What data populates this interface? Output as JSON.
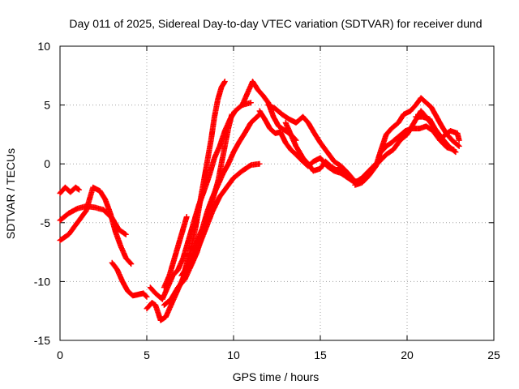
{
  "chart_data": {
    "type": "scatter",
    "title": "Day 011 of 2025, Sidereal Day-to-day VTEC variation (SDTVAR) for receiver dund",
    "xlabel": "GPS time / hours",
    "ylabel": "SDTVAR / TECUs",
    "xlim": [
      0,
      25
    ],
    "ylim": [
      -15,
      10
    ],
    "xticks": [
      0,
      5,
      10,
      15,
      20,
      25
    ],
    "yticks": [
      -15,
      -10,
      -5,
      0,
      5,
      10
    ],
    "xtick_labels": [
      "0",
      "5",
      "10",
      "15",
      "20",
      "25"
    ],
    "ytick_labels": [
      "-15",
      "-10",
      "-5",
      "0",
      "5",
      "10"
    ],
    "grid": true,
    "marker": "plus",
    "series_color": "#ff0000",
    "series": [
      {
        "name": "track-1",
        "points": [
          [
            0.0,
            -2.5
          ],
          [
            0.3,
            -2.0
          ],
          [
            0.6,
            -2.4
          ],
          [
            0.9,
            -2.0
          ],
          [
            1.1,
            -2.2
          ]
        ]
      },
      {
        "name": "track-2",
        "points": [
          [
            0.0,
            -4.8
          ],
          [
            0.5,
            -4.2
          ],
          [
            1.0,
            -3.8
          ],
          [
            1.5,
            -3.6
          ],
          [
            2.0,
            -3.7
          ],
          [
            2.5,
            -3.9
          ],
          [
            3.0,
            -4.6
          ],
          [
            3.4,
            -5.6
          ],
          [
            3.8,
            -6.0
          ]
        ]
      },
      {
        "name": "track-3",
        "points": [
          [
            0.0,
            -6.5
          ],
          [
            0.5,
            -6.0
          ],
          [
            1.0,
            -5.0
          ],
          [
            1.5,
            -4.0
          ],
          [
            1.9,
            -2.0
          ],
          [
            2.3,
            -2.3
          ],
          [
            2.6,
            -3.0
          ],
          [
            2.9,
            -4.2
          ],
          [
            3.2,
            -5.8
          ],
          [
            3.5,
            -7.0
          ],
          [
            3.8,
            -8.0
          ],
          [
            4.1,
            -8.5
          ]
        ]
      },
      {
        "name": "track-4",
        "points": [
          [
            3.0,
            -8.4
          ],
          [
            3.3,
            -9.0
          ],
          [
            3.6,
            -10.0
          ],
          [
            3.9,
            -10.8
          ],
          [
            4.2,
            -11.2
          ],
          [
            4.5,
            -11.1
          ],
          [
            4.8,
            -11.0
          ],
          [
            5.0,
            -11.3
          ]
        ]
      },
      {
        "name": "track-5",
        "points": [
          [
            5.0,
            -12.3
          ],
          [
            5.3,
            -11.8
          ],
          [
            5.5,
            -12.0
          ],
          [
            5.8,
            -13.3
          ],
          [
            6.1,
            -13.0
          ],
          [
            6.4,
            -12.0
          ],
          [
            6.7,
            -11.0
          ],
          [
            7.0,
            -10.0
          ],
          [
            7.3,
            -9.0
          ],
          [
            7.6,
            -8.0
          ],
          [
            7.9,
            -6.5
          ],
          [
            8.2,
            -5.5
          ],
          [
            8.5,
            -4.0
          ],
          [
            8.8,
            -2.8
          ],
          [
            9.1,
            -1.8
          ],
          [
            9.4,
            -0.8
          ],
          [
            9.7,
            0.0
          ],
          [
            10.0,
            1.0
          ],
          [
            10.3,
            1.8
          ],
          [
            10.6,
            2.5
          ],
          [
            11.0,
            3.5
          ],
          [
            11.5,
            4.2
          ]
        ]
      },
      {
        "name": "track-6",
        "points": [
          [
            5.2,
            -10.5
          ],
          [
            5.5,
            -11.0
          ],
          [
            5.9,
            -11.5
          ],
          [
            6.2,
            -10.5
          ],
          [
            6.5,
            -9.5
          ],
          [
            6.8,
            -9.0
          ],
          [
            7.1,
            -8.0
          ],
          [
            7.4,
            -6.5
          ],
          [
            7.7,
            -5.0
          ],
          [
            8.0,
            -3.5
          ],
          [
            8.3,
            -2.3
          ],
          [
            8.6,
            -1.0
          ],
          [
            8.9,
            0.5
          ],
          [
            9.2,
            1.5
          ],
          [
            9.5,
            2.8
          ],
          [
            9.8,
            3.8
          ],
          [
            10.1,
            4.5
          ],
          [
            10.5,
            5.0
          ],
          [
            11.0,
            5.2
          ]
        ]
      },
      {
        "name": "track-7",
        "points": [
          [
            6.0,
            -10.5
          ],
          [
            6.3,
            -9.5
          ],
          [
            6.6,
            -8.0
          ],
          [
            6.9,
            -6.5
          ],
          [
            7.1,
            -5.5
          ],
          [
            7.3,
            -4.5
          ]
        ]
      },
      {
        "name": "track-8",
        "points": [
          [
            6.0,
            -12.0
          ],
          [
            6.4,
            -11.5
          ],
          [
            6.8,
            -10.5
          ],
          [
            7.2,
            -9.8
          ],
          [
            7.6,
            -8.5
          ],
          [
            8.0,
            -7.0
          ],
          [
            8.4,
            -5.5
          ],
          [
            8.8,
            -4.0
          ],
          [
            9.2,
            -2.8
          ],
          [
            9.6,
            -2.0
          ],
          [
            10.0,
            -1.2
          ],
          [
            10.5,
            -0.6
          ],
          [
            11.0,
            -0.1
          ],
          [
            11.5,
            0.0
          ]
        ]
      },
      {
        "name": "track-9",
        "points": [
          [
            7.0,
            -9.5
          ],
          [
            7.3,
            -8.8
          ],
          [
            7.6,
            -8.5
          ],
          [
            7.9,
            -7.5
          ],
          [
            8.2,
            -6.0
          ],
          [
            8.5,
            -4.5
          ],
          [
            8.8,
            -3.0
          ],
          [
            9.1,
            -1.5
          ],
          [
            9.3,
            0.0
          ],
          [
            9.5,
            1.5
          ],
          [
            9.7,
            3.0
          ],
          [
            9.9,
            4.2
          ]
        ]
      },
      {
        "name": "track-10",
        "points": [
          [
            7.2,
            -9.0
          ],
          [
            7.5,
            -7.5
          ],
          [
            7.8,
            -5.5
          ],
          [
            8.1,
            -3.0
          ],
          [
            8.4,
            -0.5
          ],
          [
            8.7,
            2.0
          ],
          [
            8.9,
            4.0
          ],
          [
            9.1,
            5.5
          ],
          [
            9.3,
            6.5
          ],
          [
            9.5,
            7.0
          ]
        ]
      },
      {
        "name": "track-11",
        "points": [
          [
            10.5,
            5.0
          ],
          [
            10.8,
            6.0
          ],
          [
            11.1,
            7.0
          ],
          [
            11.4,
            6.3
          ],
          [
            11.7,
            5.8
          ],
          [
            12.0,
            5.2
          ],
          [
            12.3,
            4.0
          ],
          [
            12.6,
            3.2
          ],
          [
            13.0,
            2.8
          ],
          [
            13.3,
            2.5
          ],
          [
            13.6,
            2.0
          ]
        ]
      },
      {
        "name": "track-12",
        "points": [
          [
            11.5,
            4.5
          ],
          [
            11.8,
            3.8
          ],
          [
            12.1,
            3.0
          ],
          [
            12.4,
            2.6
          ],
          [
            12.7,
            2.7
          ],
          [
            13.0,
            1.8
          ],
          [
            13.3,
            1.2
          ],
          [
            13.6,
            0.8
          ],
          [
            14.0,
            0.2
          ],
          [
            14.3,
            -0.2
          ],
          [
            14.6,
            0.2
          ],
          [
            15.0,
            0.5
          ],
          [
            15.4,
            -0.2
          ],
          [
            15.8,
            -0.6
          ],
          [
            16.2,
            -0.8
          ],
          [
            16.6,
            -1.2
          ],
          [
            17.0,
            -1.6
          ],
          [
            17.4,
            -1.2
          ],
          [
            17.8,
            -0.6
          ],
          [
            18.2,
            0.0
          ]
        ]
      },
      {
        "name": "track-13",
        "points": [
          [
            12.0,
            5.0
          ],
          [
            12.4,
            4.7
          ],
          [
            12.8,
            4.2
          ],
          [
            13.2,
            3.8
          ],
          [
            13.6,
            3.5
          ],
          [
            14.0,
            4.0
          ],
          [
            14.3,
            3.5
          ],
          [
            14.7,
            2.5
          ],
          [
            15.0,
            1.8
          ],
          [
            15.4,
            1.0
          ],
          [
            15.8,
            0.2
          ],
          [
            16.2,
            -0.2
          ],
          [
            16.6,
            -0.8
          ],
          [
            17.0,
            -1.5
          ],
          [
            17.4,
            -1.4
          ],
          [
            17.8,
            -0.8
          ]
        ]
      },
      {
        "name": "track-14",
        "points": [
          [
            13.0,
            3.5
          ],
          [
            13.3,
            2.5
          ],
          [
            13.6,
            1.5
          ],
          [
            14.0,
            0.5
          ],
          [
            14.3,
            0.0
          ],
          [
            14.6,
            -0.6
          ],
          [
            15.0,
            -0.4
          ],
          [
            15.3,
            0.2
          ],
          [
            15.6,
            -0.2
          ],
          [
            15.9,
            -0.5
          ],
          [
            16.2,
            -0.5
          ],
          [
            16.6,
            -0.9
          ]
        ]
      },
      {
        "name": "track-15",
        "points": [
          [
            17.0,
            -1.8
          ],
          [
            17.4,
            -1.6
          ],
          [
            17.8,
            -1.0
          ],
          [
            18.2,
            -0.2
          ],
          [
            18.5,
            1.2
          ],
          [
            18.8,
            2.5
          ],
          [
            19.1,
            3.0
          ],
          [
            19.5,
            3.5
          ],
          [
            19.8,
            4.2
          ],
          [
            20.2,
            4.5
          ],
          [
            20.5,
            5.0
          ],
          [
            20.8,
            5.6
          ],
          [
            21.1,
            5.2
          ],
          [
            21.4,
            4.8
          ],
          [
            21.7,
            4.0
          ],
          [
            22.0,
            3.2
          ],
          [
            22.3,
            2.5
          ],
          [
            22.6,
            2.0
          ],
          [
            23.0,
            1.5
          ]
        ]
      },
      {
        "name": "track-16",
        "points": [
          [
            18.0,
            -0.5
          ],
          [
            18.4,
            0.2
          ],
          [
            18.8,
            0.8
          ],
          [
            19.2,
            1.2
          ],
          [
            19.6,
            2.0
          ],
          [
            20.0,
            2.5
          ],
          [
            20.4,
            3.5
          ],
          [
            20.8,
            4.5
          ],
          [
            21.2,
            3.8
          ],
          [
            21.6,
            3.0
          ],
          [
            22.0,
            2.2
          ],
          [
            22.4,
            1.5
          ],
          [
            22.8,
            1.0
          ]
        ]
      },
      {
        "name": "track-17",
        "points": [
          [
            18.5,
            1.0
          ],
          [
            18.8,
            1.5
          ],
          [
            19.1,
            1.8
          ],
          [
            19.5,
            2.3
          ],
          [
            19.9,
            2.8
          ],
          [
            20.3,
            3.0
          ],
          [
            20.7,
            3.0
          ],
          [
            21.1,
            3.2
          ],
          [
            21.5,
            2.8
          ],
          [
            21.9,
            2.0
          ],
          [
            22.3,
            1.4
          ],
          [
            22.7,
            1.2
          ]
        ]
      },
      {
        "name": "track-18",
        "points": [
          [
            20.5,
            4.0
          ],
          [
            20.9,
            4.0
          ],
          [
            21.3,
            3.8
          ],
          [
            21.6,
            3.0
          ],
          [
            21.9,
            2.0
          ],
          [
            22.2,
            2.5
          ],
          [
            22.5,
            2.8
          ],
          [
            22.9,
            2.6
          ],
          [
            23.0,
            2.0
          ]
        ]
      }
    ]
  }
}
